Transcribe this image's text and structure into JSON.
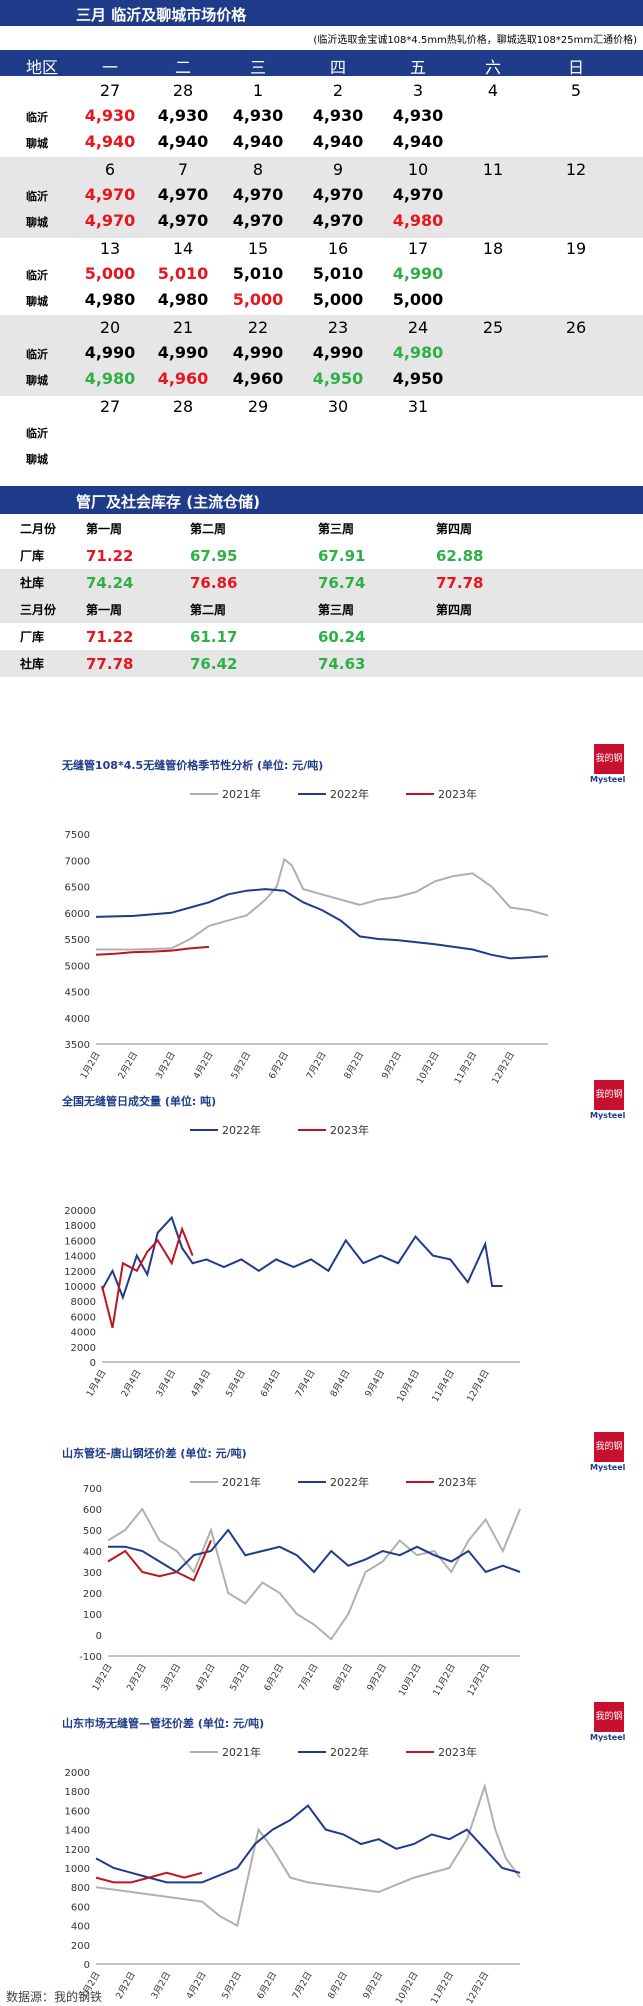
{
  "header": {
    "title": "三月  临沂及聊城市场价格",
    "note": "(临沂选取金宝诚108*4.5mm热轧价格，聊城选取108*25mm汇通价格)"
  },
  "calendar": {
    "area_label": "地区",
    "days": [
      "一",
      "二",
      "三",
      "四",
      "五",
      "六",
      "日"
    ],
    "row_labels": [
      "临沂",
      "聊城"
    ],
    "weeks": [
      {
        "dates": [
          "27",
          "28",
          "1",
          "2",
          "3",
          "4",
          "5"
        ],
        "linyi": [
          [
            "4,930",
            "red"
          ],
          [
            "4,930",
            "blk"
          ],
          [
            "4,930",
            "blk"
          ],
          [
            "4,930",
            "blk"
          ],
          [
            "4,930",
            "blk"
          ],
          [
            "",
            ""
          ],
          [
            "",
            ""
          ]
        ],
        "liaocheng": [
          [
            "4,940",
            "red"
          ],
          [
            "4,940",
            "blk"
          ],
          [
            "4,940",
            "blk"
          ],
          [
            "4,940",
            "blk"
          ],
          [
            "4,940",
            "blk"
          ],
          [
            "",
            ""
          ],
          [
            "",
            ""
          ]
        ]
      },
      {
        "dates": [
          "6",
          "7",
          "8",
          "9",
          "10",
          "11",
          "12"
        ],
        "linyi": [
          [
            "4,970",
            "red"
          ],
          [
            "4,970",
            "blk"
          ],
          [
            "4,970",
            "blk"
          ],
          [
            "4,970",
            "blk"
          ],
          [
            "4,970",
            "blk"
          ],
          [
            "",
            ""
          ],
          [
            "",
            ""
          ]
        ],
        "liaocheng": [
          [
            "4,970",
            "red"
          ],
          [
            "4,970",
            "blk"
          ],
          [
            "4,970",
            "blk"
          ],
          [
            "4,970",
            "blk"
          ],
          [
            "4,980",
            "red"
          ],
          [
            "",
            ""
          ],
          [
            "",
            ""
          ]
        ]
      },
      {
        "dates": [
          "13",
          "14",
          "15",
          "16",
          "17",
          "18",
          "19"
        ],
        "linyi": [
          [
            "5,000",
            "red"
          ],
          [
            "5,010",
            "red"
          ],
          [
            "5,010",
            "blk"
          ],
          [
            "5,010",
            "blk"
          ],
          [
            "4,990",
            "green"
          ],
          [
            "",
            ""
          ],
          [
            "",
            ""
          ]
        ],
        "liaocheng": [
          [
            "4,980",
            "blk"
          ],
          [
            "4,980",
            "blk"
          ],
          [
            "5,000",
            "red"
          ],
          [
            "5,000",
            "blk"
          ],
          [
            "5,000",
            "blk"
          ],
          [
            "",
            ""
          ],
          [
            "",
            ""
          ]
        ]
      },
      {
        "dates": [
          "20",
          "21",
          "22",
          "23",
          "24",
          "25",
          "26"
        ],
        "linyi": [
          [
            "4,990",
            "blk"
          ],
          [
            "4,990",
            "blk"
          ],
          [
            "4,990",
            "blk"
          ],
          [
            "4,990",
            "blk"
          ],
          [
            "4,980",
            "green"
          ],
          [
            "",
            ""
          ],
          [
            "",
            ""
          ]
        ],
        "liaocheng": [
          [
            "4,980",
            "green"
          ],
          [
            "4,960",
            "red"
          ],
          [
            "4,960",
            "blk"
          ],
          [
            "4,950",
            "green"
          ],
          [
            "4,950",
            "blk"
          ],
          [
            "",
            ""
          ],
          [
            "",
            ""
          ]
        ]
      },
      {
        "dates": [
          "27",
          "28",
          "29",
          "30",
          "31",
          "",
          ""
        ],
        "linyi": [
          [
            "",
            ""
          ],
          [
            "",
            ""
          ],
          [
            "",
            ""
          ],
          [
            "",
            ""
          ],
          [
            "",
            ""
          ],
          [
            "",
            ""
          ],
          [
            "",
            ""
          ]
        ],
        "liaocheng": [
          [
            "",
            ""
          ],
          [
            "",
            ""
          ],
          [
            "",
            ""
          ],
          [
            "",
            ""
          ],
          [
            "",
            ""
          ],
          [
            "",
            ""
          ],
          [
            "",
            ""
          ]
        ]
      }
    ]
  },
  "inventory": {
    "title": "管厂及社会库存 (主流仓储)",
    "rows": [
      {
        "cells": [
          [
            "二月份",
            "blk"
          ],
          [
            "第一周",
            "blk"
          ],
          [
            "第二周",
            "blk"
          ],
          [
            "第三周",
            "blk"
          ],
          [
            "第四周",
            "blk"
          ]
        ],
        "shade": false,
        "head": true
      },
      {
        "cells": [
          [
            "厂库",
            "blk"
          ],
          [
            "71.22",
            "red"
          ],
          [
            "67.95",
            "green"
          ],
          [
            "67.91",
            "green"
          ],
          [
            "62.88",
            "green"
          ]
        ],
        "shade": false
      },
      {
        "cells": [
          [
            "社库",
            "blk"
          ],
          [
            "74.24",
            "green"
          ],
          [
            "76.86",
            "red"
          ],
          [
            "76.74",
            "green"
          ],
          [
            "77.78",
            "red"
          ]
        ],
        "shade": true
      },
      {
        "cells": [
          [
            "三月份",
            "blk"
          ],
          [
            "第一周",
            "blk"
          ],
          [
            "第二周",
            "blk"
          ],
          [
            "第三周",
            "blk"
          ],
          [
            "第四周",
            "blk"
          ]
        ],
        "shade": true,
        "head": true
      },
      {
        "cells": [
          [
            "厂库",
            "blk"
          ],
          [
            "71.22",
            "red"
          ],
          [
            "61.17",
            "green"
          ],
          [
            "60.24",
            "green"
          ],
          [
            "",
            ""
          ]
        ],
        "shade": false
      },
      {
        "cells": [
          [
            "社库",
            "blk"
          ],
          [
            "77.78",
            "red"
          ],
          [
            "76.42",
            "green"
          ],
          [
            "74.63",
            "green"
          ],
          [
            "",
            ""
          ]
        ],
        "shade": true
      }
    ]
  },
  "logo": {
    "brand": "我的钢铁",
    "site": "Mysteel.com",
    "small": "Mysteel"
  },
  "footer": {
    "source": "数据源：我的钢铁"
  },
  "chart_data": [
    {
      "type": "line",
      "title": "无缝管108*4.5无缝管价格季节性分析 (单位: 元/吨)",
      "ylim": [
        3500,
        7500
      ],
      "yticks": [
        3500,
        4000,
        4500,
        5000,
        5500,
        6000,
        6500,
        7000,
        7500
      ],
      "xticks": [
        "1月2日",
        "2月2日",
        "3月2日",
        "4月2日",
        "5月2日",
        "6月2日",
        "7月2日",
        "8月2日",
        "9月2日",
        "10月2日",
        "11月2日",
        "12月2日"
      ],
      "colors": [
        "#b0b0b0",
        "#1f3c8a",
        "#c0141e"
      ],
      "series": [
        {
          "name": "2021年",
          "x": [
            0,
            1,
            1.5,
            2,
            2.5,
            3,
            3.5,
            4,
            4.5,
            4.8,
            5,
            5.2,
            5.5,
            6,
            7,
            7.5,
            8,
            8.5,
            9,
            9.5,
            10,
            10.5,
            11,
            11.5,
            12
          ],
          "y": [
            5300,
            5300,
            5310,
            5320,
            5500,
            5750,
            5850,
            5950,
            6250,
            6500,
            7020,
            6900,
            6450,
            6350,
            6150,
            6250,
            6300,
            6400,
            6600,
            6700,
            6750,
            6500,
            6100,
            6050,
            5950
          ]
        },
        {
          "name": "2022年",
          "x": [
            0,
            1,
            2,
            2.5,
            3,
            3.5,
            4,
            4.5,
            5,
            5.5,
            6,
            6.5,
            7,
            7.5,
            8,
            9,
            10,
            10.5,
            11,
            11.5,
            12
          ],
          "y": [
            5920,
            5940,
            6000,
            6100,
            6200,
            6350,
            6420,
            6450,
            6420,
            6200,
            6050,
            5850,
            5550,
            5500,
            5480,
            5400,
            5300,
            5200,
            5130,
            5150,
            5170
          ]
        },
        {
          "name": "2023年",
          "x": [
            0,
            0.5,
            1,
            1.5,
            2,
            2.5,
            3
          ],
          "y": [
            5200,
            5220,
            5250,
            5260,
            5280,
            5320,
            5350
          ]
        }
      ]
    },
    {
      "type": "line",
      "title": "全国无缝管日成交量 (单位: 吨)",
      "ylim": [
        0,
        20000
      ],
      "yticks": [
        0,
        2000,
        4000,
        6000,
        8000,
        10000,
        12000,
        14000,
        16000,
        18000,
        20000
      ],
      "xticks": [
        "1月4日",
        "2月4日",
        "3月4日",
        "4月4日",
        "5月4日",
        "6月4日",
        "7月4日",
        "8月4日",
        "9月4日",
        "10月4日",
        "11月4日",
        "12月4日"
      ],
      "colors": [
        "#1f3c8a",
        "#c0141e"
      ],
      "series": [
        {
          "name": "2022年",
          "x": [
            0,
            0.3,
            0.6,
            1,
            1.3,
            1.6,
            2,
            2.3,
            2.6,
            3,
            3.5,
            4,
            4.5,
            5,
            5.5,
            6,
            6.5,
            7,
            7.5,
            8,
            8.5,
            9,
            9.5,
            10,
            10.5,
            11,
            11.2,
            11.5
          ],
          "y": [
            9500,
            12000,
            8500,
            14000,
            11500,
            17000,
            19000,
            15000,
            13000,
            13500,
            12500,
            13500,
            12000,
            13500,
            12500,
            13500,
            12000,
            16000,
            13000,
            14000,
            13000,
            16500,
            14000,
            13500,
            10500,
            15500,
            10000,
            10000
          ]
        },
        {
          "name": "2023年",
          "x": [
            0,
            0.3,
            0.6,
            1,
            1.3,
            1.6,
            2,
            2.3,
            2.6
          ],
          "y": [
            10000,
            4500,
            13000,
            12000,
            14500,
            16000,
            13000,
            17500,
            14000
          ]
        }
      ]
    },
    {
      "type": "line",
      "title": "山东管坯-唐山钢坯价差 (单位: 元/吨)",
      "ylim": [
        -100,
        700
      ],
      "yticks": [
        -100,
        0,
        100,
        200,
        300,
        400,
        500,
        600,
        700
      ],
      "xticks": [
        "1月2日",
        "2月2日",
        "3月2日",
        "4月2日",
        "5月2日",
        "6月2日",
        "7月2日",
        "8月2日",
        "9月2日",
        "10月2日",
        "11月2日",
        "12月2日"
      ],
      "colors": [
        "#b0b0b0",
        "#1f3c8a",
        "#c0141e"
      ],
      "series": [
        {
          "name": "2021年",
          "x": [
            0,
            0.5,
            1,
            1.5,
            2,
            2.5,
            3,
            3.5,
            4,
            4.5,
            5,
            5.5,
            6,
            6.5,
            7,
            7.5,
            8,
            8.5,
            9,
            9.5,
            10,
            10.5,
            11,
            11.5,
            12
          ],
          "y": [
            450,
            500,
            600,
            450,
            400,
            300,
            500,
            200,
            150,
            250,
            200,
            100,
            50,
            -20,
            100,
            300,
            350,
            450,
            380,
            400,
            300,
            450,
            550,
            400,
            600
          ]
        },
        {
          "name": "2022年",
          "x": [
            0,
            0.5,
            1,
            1.5,
            2,
            2.5,
            3,
            3.5,
            4,
            4.5,
            5,
            5.5,
            6,
            6.5,
            7,
            7.5,
            8,
            8.5,
            9,
            9.5,
            10,
            10.5,
            11,
            11.5,
            12
          ],
          "y": [
            420,
            420,
            400,
            350,
            300,
            380,
            400,
            500,
            380,
            400,
            420,
            380,
            300,
            400,
            330,
            360,
            400,
            380,
            420,
            380,
            350,
            400,
            300,
            330,
            300
          ]
        },
        {
          "name": "2023年",
          "x": [
            0,
            0.5,
            1,
            1.5,
            2,
            2.5,
            3
          ],
          "y": [
            350,
            400,
            300,
            280,
            300,
            260,
            450
          ]
        }
      ]
    },
    {
      "type": "line",
      "title": "山东市场无缝管—管坯价差 (单位: 元/吨)",
      "ylim": [
        0,
        2000
      ],
      "yticks": [
        0,
        200,
        400,
        600,
        800,
        1000,
        1200,
        1400,
        1600,
        1800,
        2000
      ],
      "xticks": [
        "1月2日",
        "2月2日",
        "3月2日",
        "4月2日",
        "5月2日",
        "6月2日",
        "7月2日",
        "8月2日",
        "9月2日",
        "10月2日",
        "11月2日",
        "12月2日"
      ],
      "colors": [
        "#b0b0b0",
        "#1f3c8a",
        "#c0141e"
      ],
      "series": [
        {
          "name": "2021年",
          "x": [
            0,
            1,
            2,
            3,
            3.5,
            4,
            4.3,
            4.6,
            5,
            5.5,
            6,
            7,
            8,
            9,
            10,
            10.5,
            11,
            11.3,
            11.6,
            12
          ],
          "y": [
            800,
            750,
            700,
            650,
            500,
            400,
            900,
            1400,
            1200,
            900,
            850,
            800,
            750,
            900,
            1000,
            1300,
            1850,
            1400,
            1100,
            900
          ]
        },
        {
          "name": "2022年",
          "x": [
            0,
            0.5,
            1,
            1.5,
            2,
            3,
            4,
            4.5,
            5,
            5.5,
            6,
            6.5,
            7,
            7.5,
            8,
            8.5,
            9,
            9.5,
            10,
            10.5,
            11,
            11.5,
            12
          ],
          "y": [
            1100,
            1000,
            950,
            900,
            850,
            850,
            1000,
            1250,
            1400,
            1500,
            1650,
            1400,
            1350,
            1250,
            1300,
            1200,
            1250,
            1350,
            1300,
            1400,
            1200,
            1000,
            950
          ]
        },
        {
          "name": "2023年",
          "x": [
            0,
            0.5,
            1,
            1.5,
            2,
            2.5,
            3
          ],
          "y": [
            900,
            850,
            850,
            900,
            950,
            900,
            950
          ]
        }
      ]
    }
  ]
}
